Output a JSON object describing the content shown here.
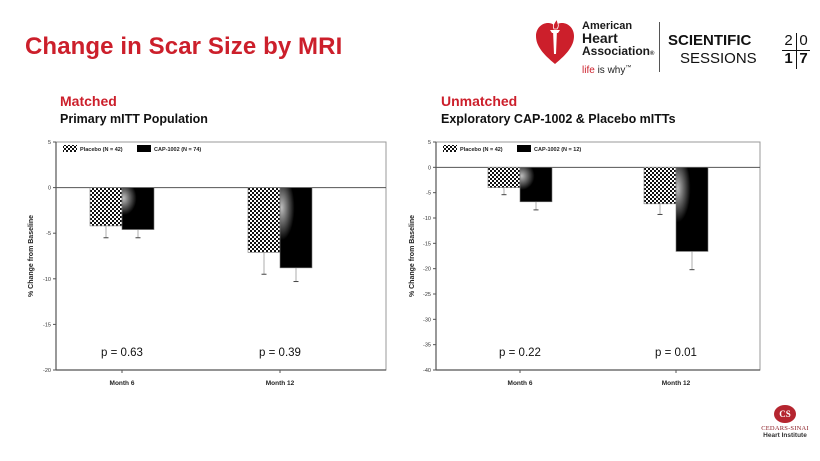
{
  "slide": {
    "title": "Change in Scar Size by MRI"
  },
  "branding": {
    "aha_line1": "American",
    "aha_line2": "Heart",
    "aha_line3": "Association",
    "aha_reg": "®",
    "aha_tag_red": "life",
    "aha_tag_rest": " is why",
    "aha_tm": "™",
    "ss_line1": "SCIENTIFIC",
    "ss_line2": "SESSIONS",
    "ss_year_digits": [
      "2",
      "0",
      "1",
      "7"
    ],
    "cs_monogram": "CS",
    "cs_name": "CEDARS-SINAI",
    "cs_institute": "Heart Institute",
    "colors": {
      "red": "#cc1f2b",
      "dark": "#111111"
    }
  },
  "sections": [
    {
      "title": "Matched",
      "subtitle": "Primary mITT Population"
    },
    {
      "title": "Unmatched",
      "subtitle": "Exploratory CAP-1002 & Placebo mITTs"
    }
  ],
  "chart_data": [
    {
      "type": "bar",
      "title": "Matched — Primary mITT Population",
      "xlabel": "",
      "ylabel": "% Change from Baseline",
      "categories": [
        "Month 6",
        "Month 12"
      ],
      "ylim": [
        -20,
        5
      ],
      "yticks": [
        5,
        0,
        -5,
        -10,
        -15,
        -20
      ],
      "grid": false,
      "legend": "top-left",
      "series": [
        {
          "name": "Placebo (N = 42)",
          "pattern": "checker",
          "values": [
            -4.2,
            -7.1
          ],
          "error_lower": [
            -5.5,
            -9.5
          ]
        },
        {
          "name": "CAP-1002 (N = 74)",
          "pattern": "solid-gradient",
          "values": [
            -4.6,
            -8.8
          ],
          "error_lower": [
            -5.5,
            -10.3
          ]
        }
      ],
      "annotations": [
        "p = 0.63",
        "p = 0.39"
      ]
    },
    {
      "type": "bar",
      "title": "Unmatched — Exploratory CAP-1002 & Placebo mITTs",
      "xlabel": "",
      "ylabel": "% Change from Baseline",
      "categories": [
        "Month 6",
        "Month 12"
      ],
      "ylim": [
        -40,
        5
      ],
      "yticks": [
        5,
        0,
        -5,
        -10,
        -15,
        -20,
        -25,
        -30,
        -35,
        -40
      ],
      "grid": false,
      "legend": "top-left",
      "series": [
        {
          "name": "Placebo (N = 42)",
          "pattern": "checker",
          "values": [
            -4.0,
            -7.2
          ],
          "error_lower": [
            -5.4,
            -9.3
          ]
        },
        {
          "name": "CAP-1002 (N = 12)",
          "pattern": "solid-gradient",
          "values": [
            -6.8,
            -16.6
          ],
          "error_lower": [
            -8.4,
            -20.2
          ]
        }
      ],
      "annotations": [
        "p = 0.22",
        "p = 0.01"
      ]
    }
  ]
}
